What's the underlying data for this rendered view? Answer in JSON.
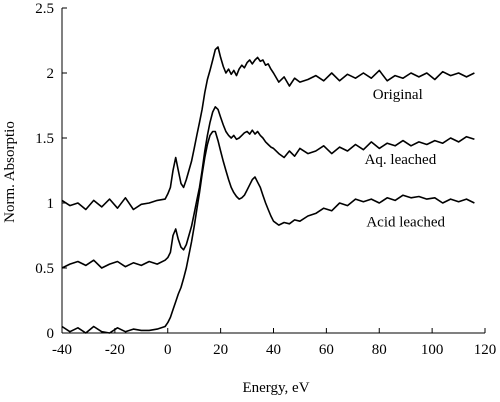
{
  "chart_data": {
    "type": "line",
    "title": "",
    "xlabel": "Energy, eV",
    "ylabel": "Norm. Absorptio",
    "xlim": [
      -40,
      120
    ],
    "ylim": [
      0,
      2.5
    ],
    "xticks": [
      -40,
      -20,
      0,
      20,
      40,
      60,
      80,
      100,
      120
    ],
    "yticks": [
      0,
      0.5,
      1,
      1.5,
      2,
      2.5
    ],
    "xtick_labels": [
      "-40",
      "-20",
      "0",
      "20",
      "40",
      "60",
      "80",
      "100",
      "120"
    ],
    "ytick_labels": [
      "0",
      "0.5",
      "1",
      "1.5",
      "2",
      "2.5"
    ],
    "grid": false,
    "series": [
      {
        "name": "Original",
        "x": [
          -40,
          -37,
          -34,
          -31,
          -28,
          -25,
          -22,
          -19,
          -16,
          -13,
          -10,
          -7,
          -4,
          -1,
          0,
          1,
          2,
          3,
          4,
          5,
          6,
          7,
          8,
          9,
          10,
          11,
          12,
          13,
          14,
          15,
          16,
          17,
          18,
          19,
          20,
          21,
          22,
          23,
          24,
          25,
          26,
          27,
          28,
          29,
          30,
          31,
          32,
          33,
          34,
          35,
          36,
          37,
          38,
          39,
          40,
          42,
          44,
          46,
          48,
          50,
          53,
          56,
          59,
          62,
          65,
          68,
          71,
          74,
          77,
          80,
          83,
          86,
          89,
          92,
          95,
          98,
          101,
          104,
          107,
          110,
          113,
          116
        ],
        "y": [
          1.02,
          0.98,
          1.0,
          0.95,
          1.02,
          0.97,
          1.03,
          0.96,
          1.04,
          0.95,
          0.99,
          1.0,
          1.02,
          1.03,
          1.07,
          1.12,
          1.25,
          1.35,
          1.25,
          1.15,
          1.12,
          1.18,
          1.25,
          1.32,
          1.42,
          1.52,
          1.62,
          1.72,
          1.85,
          1.95,
          2.02,
          2.1,
          2.18,
          2.2,
          2.12,
          2.05,
          2.0,
          2.03,
          1.99,
          2.02,
          1.98,
          2.03,
          2.06,
          2.04,
          2.08,
          2.1,
          2.07,
          2.1,
          2.12,
          2.09,
          2.1,
          2.06,
          2.07,
          2.03,
          2.0,
          1.93,
          1.97,
          1.9,
          1.96,
          1.93,
          1.95,
          1.98,
          1.94,
          2.0,
          1.94,
          1.99,
          1.96,
          2.0,
          1.96,
          2.02,
          1.94,
          1.98,
          1.96,
          2.0,
          1.97,
          2.0,
          1.95,
          2.01,
          1.98,
          2.0,
          1.97,
          2.0
        ]
      },
      {
        "name": "Aq. leached",
        "x": [
          -40,
          -37,
          -34,
          -31,
          -28,
          -25,
          -22,
          -19,
          -16,
          -13,
          -10,
          -7,
          -4,
          -1,
          0,
          1,
          2,
          3,
          4,
          5,
          6,
          7,
          8,
          9,
          10,
          11,
          12,
          13,
          14,
          15,
          16,
          17,
          18,
          19,
          20,
          21,
          22,
          23,
          24,
          25,
          26,
          27,
          28,
          29,
          30,
          31,
          32,
          33,
          34,
          35,
          36,
          37,
          38,
          39,
          40,
          42,
          44,
          46,
          48,
          50,
          53,
          56,
          59,
          62,
          65,
          68,
          71,
          74,
          77,
          80,
          83,
          86,
          89,
          92,
          95,
          98,
          101,
          104,
          107,
          110,
          113,
          116
        ],
        "y": [
          0.5,
          0.53,
          0.55,
          0.52,
          0.56,
          0.5,
          0.53,
          0.55,
          0.51,
          0.54,
          0.52,
          0.55,
          0.53,
          0.56,
          0.58,
          0.62,
          0.75,
          0.8,
          0.72,
          0.66,
          0.64,
          0.68,
          0.75,
          0.82,
          0.92,
          1.02,
          1.12,
          1.25,
          1.4,
          1.52,
          1.62,
          1.7,
          1.74,
          1.72,
          1.66,
          1.6,
          1.55,
          1.52,
          1.5,
          1.52,
          1.49,
          1.5,
          1.52,
          1.54,
          1.55,
          1.53,
          1.56,
          1.53,
          1.55,
          1.52,
          1.5,
          1.47,
          1.45,
          1.43,
          1.42,
          1.38,
          1.35,
          1.4,
          1.36,
          1.42,
          1.38,
          1.4,
          1.44,
          1.38,
          1.43,
          1.4,
          1.45,
          1.41,
          1.47,
          1.42,
          1.46,
          1.44,
          1.48,
          1.44,
          1.47,
          1.45,
          1.48,
          1.46,
          1.5,
          1.47,
          1.51,
          1.49
        ]
      },
      {
        "name": "Acid leached",
        "x": [
          -40,
          -37,
          -34,
          -31,
          -28,
          -25,
          -22,
          -19,
          -16,
          -13,
          -10,
          -7,
          -4,
          -1,
          0,
          1,
          2,
          3,
          4,
          5,
          6,
          7,
          8,
          9,
          10,
          11,
          12,
          13,
          14,
          15,
          16,
          17,
          18,
          19,
          20,
          21,
          22,
          23,
          24,
          25,
          26,
          27,
          28,
          29,
          30,
          31,
          32,
          33,
          34,
          35,
          36,
          37,
          38,
          39,
          40,
          42,
          44,
          46,
          48,
          50,
          53,
          56,
          59,
          62,
          65,
          68,
          71,
          74,
          77,
          80,
          83,
          86,
          89,
          92,
          95,
          98,
          101,
          104,
          107,
          110,
          113,
          116
        ],
        "y": [
          0.05,
          0.01,
          0.04,
          0.0,
          0.05,
          0.01,
          0.0,
          0.04,
          0.01,
          0.03,
          0.02,
          0.02,
          0.03,
          0.05,
          0.08,
          0.12,
          0.18,
          0.24,
          0.3,
          0.35,
          0.42,
          0.5,
          0.6,
          0.7,
          0.82,
          0.95,
          1.08,
          1.22,
          1.35,
          1.45,
          1.52,
          1.55,
          1.55,
          1.48,
          1.4,
          1.32,
          1.25,
          1.18,
          1.12,
          1.08,
          1.05,
          1.03,
          1.04,
          1.06,
          1.1,
          1.14,
          1.18,
          1.2,
          1.16,
          1.12,
          1.06,
          1.0,
          0.95,
          0.9,
          0.86,
          0.83,
          0.85,
          0.84,
          0.87,
          0.86,
          0.9,
          0.92,
          0.96,
          0.94,
          1.0,
          0.98,
          1.03,
          1.01,
          1.03,
          1.0,
          1.04,
          1.02,
          1.06,
          1.04,
          1.05,
          1.03,
          1.04,
          1.0,
          1.03,
          1.01,
          1.03,
          1.0
        ]
      }
    ],
    "annotations": [
      {
        "text": "Original",
        "x": 87,
        "y": 1.8
      },
      {
        "text": "Aq. leached",
        "x": 88,
        "y": 1.3
      },
      {
        "text": "Acid leached",
        "x": 90,
        "y": 0.82
      }
    ]
  }
}
